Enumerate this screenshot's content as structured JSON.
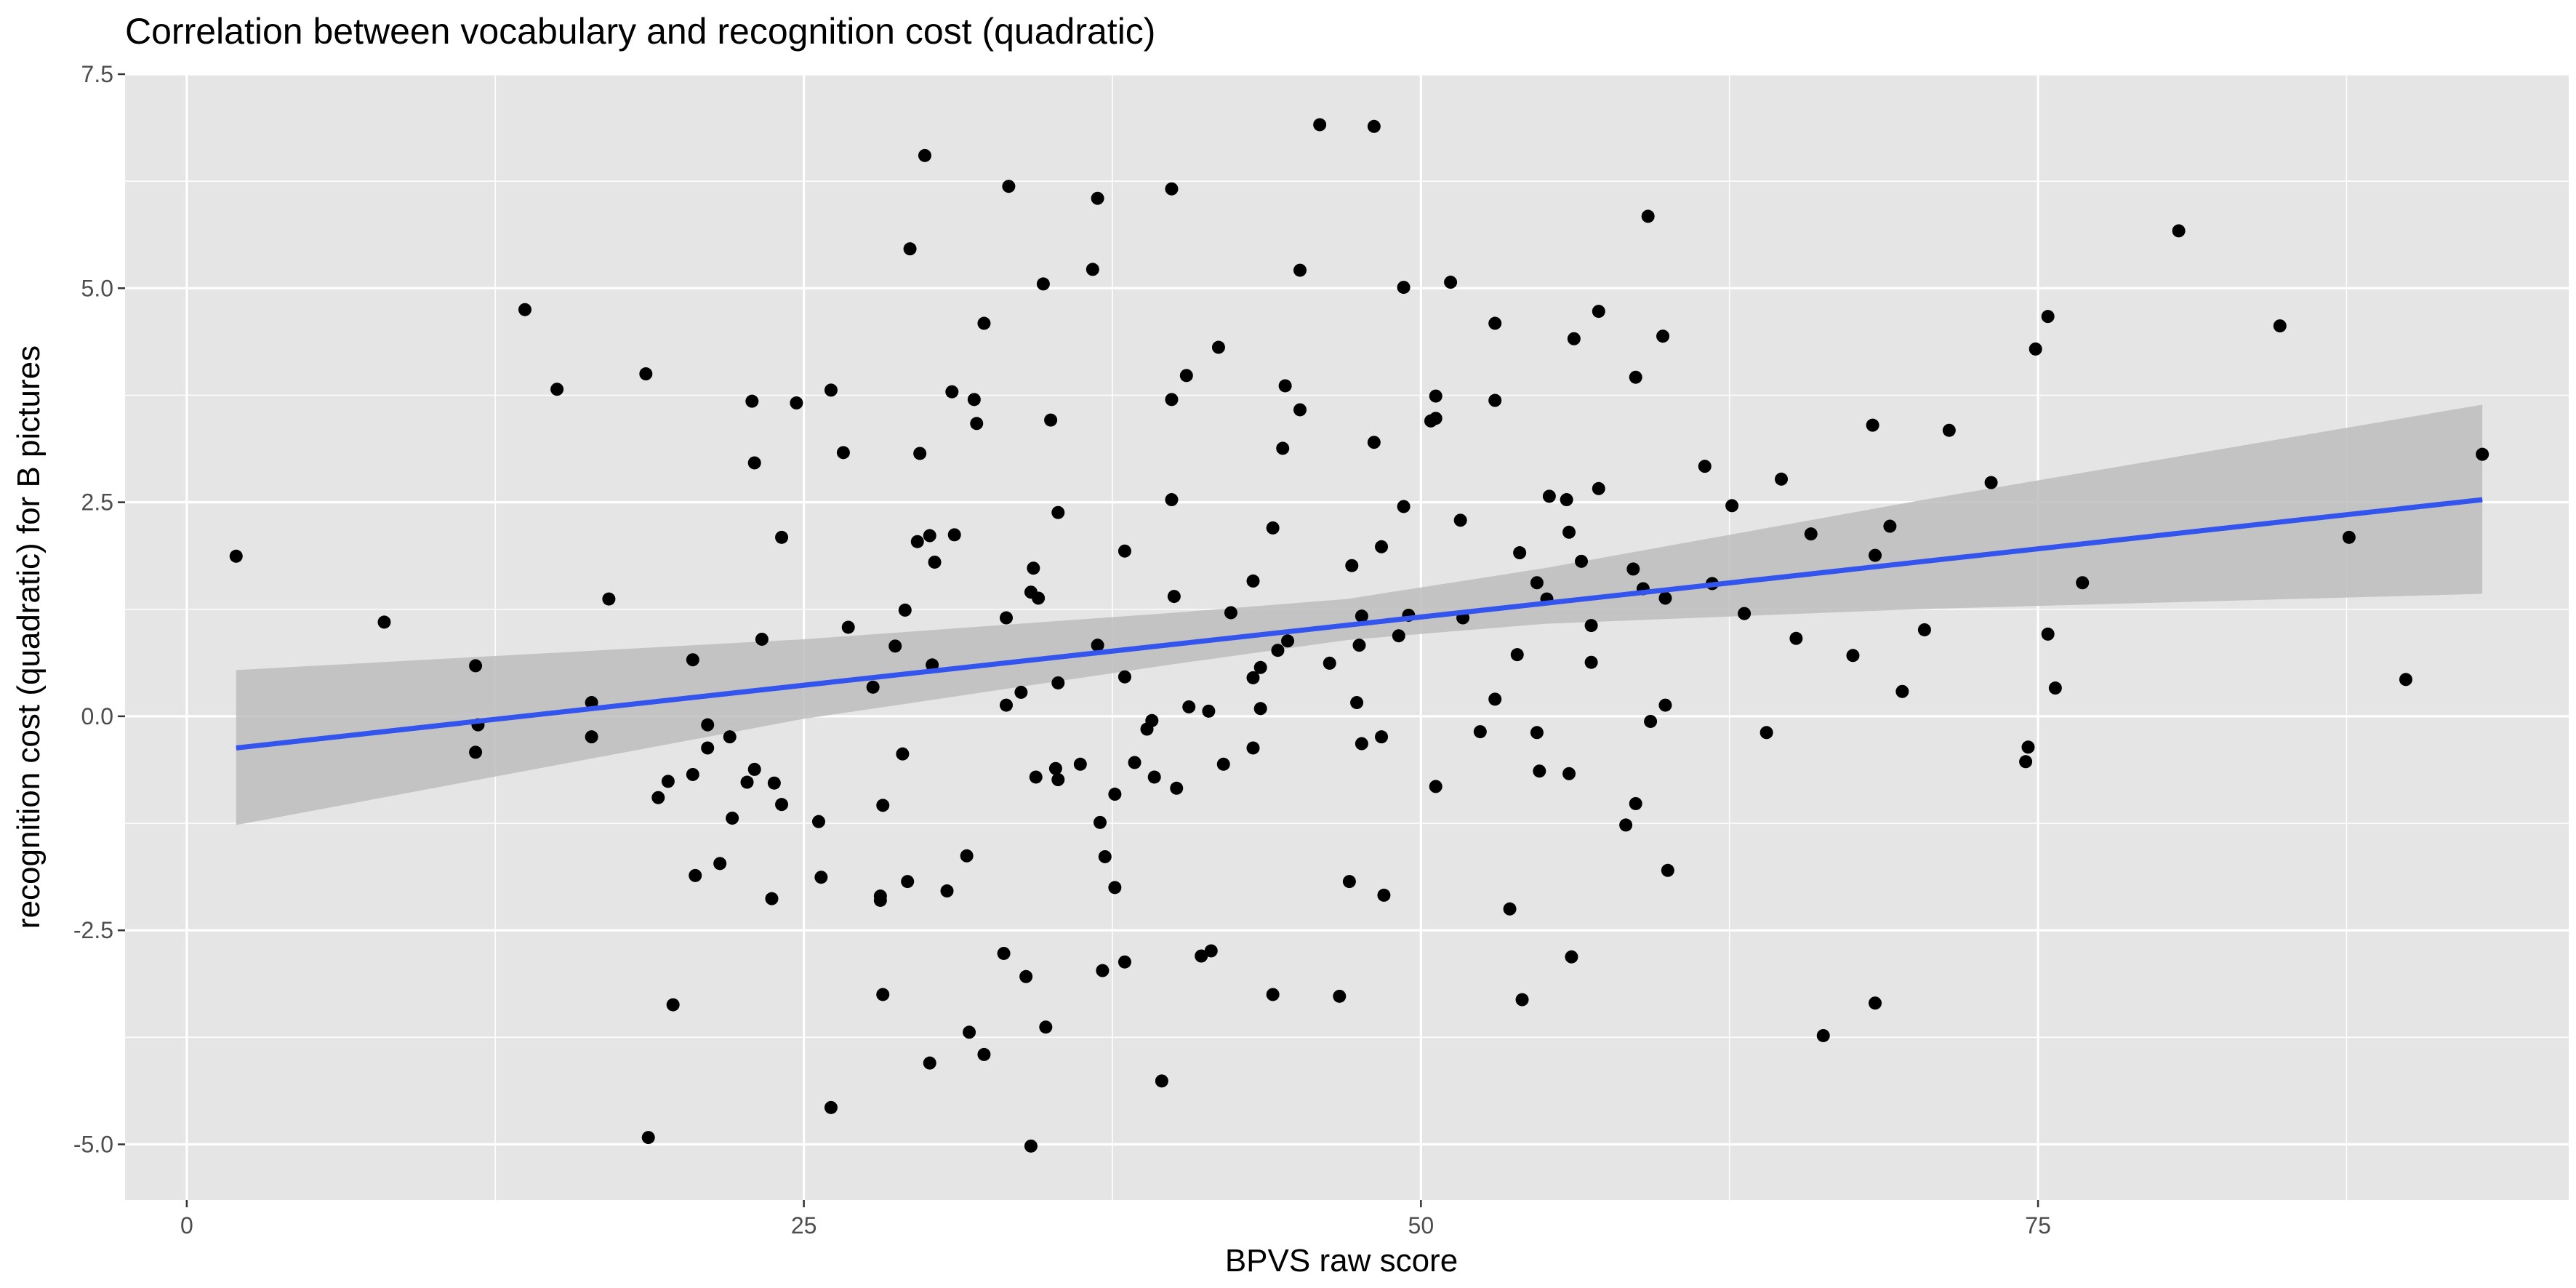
{
  "chart_data": {
    "type": "scatter",
    "title": "Correlation between vocabulary and recognition cost (quadratic)",
    "xlabel": "BPVS raw score",
    "ylabel": "recognition cost (quadratic) for B pictures",
    "xlim": [
      -2.5,
      96.5
    ],
    "ylim": [
      -5.65,
      7.5
    ],
    "x_ticks": [
      0,
      25,
      50,
      75
    ],
    "x_tick_labels": [
      "0",
      "25",
      "50",
      "75"
    ],
    "y_ticks": [
      -5,
      -2.5,
      0,
      2.5,
      5,
      7.5
    ],
    "y_tick_labels": [
      "-5.0",
      "-2.5",
      "0.0",
      "2.5",
      "5.0",
      "7.5"
    ],
    "grid": true,
    "panel_background": "#e5e5e5",
    "grid_color": "#ffffff",
    "point_color": "#000000",
    "fit": {
      "method": "linear regression",
      "x_range": [
        2,
        93
      ],
      "line": [
        [
          2,
          -0.37
        ],
        [
          93,
          2.53
        ]
      ],
      "color": "#3355ee",
      "ci_band_color": "#bdbdbd",
      "ci": [
        [
          2,
          -1.27,
          0.54
        ],
        [
          25,
          -0.03,
          0.9
        ],
        [
          40,
          0.61,
          1.21
        ],
        [
          47,
          0.89,
          1.37
        ],
        [
          55,
          1.08,
          1.73
        ],
        [
          70,
          1.25,
          2.51
        ],
        [
          93,
          1.43,
          3.64
        ]
      ]
    },
    "points": [
      [
        2,
        1.87
      ],
      [
        8,
        1.1
      ],
      [
        11.7,
        0.59
      ],
      [
        11.7,
        -0.42
      ],
      [
        11.8,
        -0.1
      ],
      [
        13.7,
        4.75
      ],
      [
        15,
        3.82
      ],
      [
        16.4,
        0.16
      ],
      [
        16.4,
        -0.24
      ],
      [
        17.1,
        1.37
      ],
      [
        18.6,
        4.0
      ],
      [
        18.7,
        -4.92
      ],
      [
        19.1,
        -0.95
      ],
      [
        19.5,
        -0.76
      ],
      [
        19.7,
        -3.37
      ],
      [
        20.5,
        0.66
      ],
      [
        20.5,
        -0.68
      ],
      [
        20.6,
        -1.86
      ],
      [
        21.1,
        -0.1
      ],
      [
        21.1,
        -0.37
      ],
      [
        21.6,
        -1.72
      ],
      [
        22,
        -0.24
      ],
      [
        22.1,
        -1.19
      ],
      [
        22.9,
        3.68
      ],
      [
        23,
        2.96
      ],
      [
        23,
        -0.62
      ],
      [
        23.3,
        0.9
      ],
      [
        22.7,
        -0.77
      ],
      [
        23.8,
        -0.78
      ],
      [
        23.7,
        -2.13
      ],
      [
        24.1,
        2.09
      ],
      [
        24.1,
        -1.03
      ],
      [
        24.7,
        3.66
      ],
      [
        25.6,
        -1.23
      ],
      [
        25.7,
        -1.88
      ],
      [
        26.1,
        3.81
      ],
      [
        26.1,
        -4.57
      ],
      [
        26.6,
        3.08
      ],
      [
        26.8,
        1.04
      ],
      [
        27.8,
        0.34
      ],
      [
        28.1,
        -2.15
      ],
      [
        28.1,
        -2.1
      ],
      [
        28.2,
        -3.25
      ],
      [
        28.2,
        -1.04
      ],
      [
        28.7,
        0.82
      ],
      [
        29,
        -0.44
      ],
      [
        29.1,
        1.24
      ],
      [
        29.2,
        -1.93
      ],
      [
        29.3,
        5.46
      ],
      [
        29.6,
        2.04
      ],
      [
        29.7,
        3.07
      ],
      [
        29.9,
        6.55
      ],
      [
        30.1,
        -4.05
      ],
      [
        30.1,
        2.11
      ],
      [
        30.2,
        0.6
      ],
      [
        30.3,
        1.8
      ],
      [
        30.8,
        -2.04
      ],
      [
        31.1,
        2.12
      ],
      [
        31,
        3.79
      ],
      [
        31.6,
        -1.63
      ],
      [
        31.7,
        -3.69
      ],
      [
        31.9,
        3.7
      ],
      [
        32,
        3.42
      ],
      [
        32.3,
        4.59
      ],
      [
        32.3,
        -3.95
      ],
      [
        33.1,
        -2.77
      ],
      [
        33.3,
        6.19
      ],
      [
        33.2,
        1.15
      ],
      [
        33.2,
        0.13
      ],
      [
        33.8,
        0.28
      ],
      [
        34,
        -3.04
      ],
      [
        34.2,
        -5.02
      ],
      [
        34.3,
        1.73
      ],
      [
        34.2,
        1.45
      ],
      [
        34.5,
        1.38
      ],
      [
        34.4,
        -0.71
      ],
      [
        34.7,
        5.05
      ],
      [
        34.8,
        -3.63
      ],
      [
        35,
        3.46
      ],
      [
        35.2,
        -0.61
      ],
      [
        35.3,
        -0.74
      ],
      [
        35.3,
        0.39
      ],
      [
        35.3,
        2.38
      ],
      [
        36.2,
        -0.56
      ],
      [
        36.7,
        5.22
      ],
      [
        36.9,
        6.05
      ],
      [
        36.9,
        0.83
      ],
      [
        37,
        -1.24
      ],
      [
        37.2,
        -1.64
      ],
      [
        37.1,
        -2.97
      ],
      [
        37.6,
        -2.0
      ],
      [
        37.6,
        -0.91
      ],
      [
        38,
        0.46
      ],
      [
        38,
        1.93
      ],
      [
        38,
        -2.87
      ],
      [
        38.4,
        -0.54
      ],
      [
        38.9,
        -0.15
      ],
      [
        39.1,
        -0.05
      ],
      [
        39.2,
        -0.71
      ],
      [
        39.5,
        -4.26
      ],
      [
        39.9,
        3.7
      ],
      [
        39.9,
        2.53
      ],
      [
        40,
        1.4
      ],
      [
        39.9,
        6.16
      ],
      [
        40.1,
        -0.84
      ],
      [
        40.5,
        3.98
      ],
      [
        40.6,
        0.11
      ],
      [
        41.1,
        -2.8
      ],
      [
        41.4,
        0.06
      ],
      [
        41.5,
        -2.74
      ],
      [
        41.8,
        4.31
      ],
      [
        42,
        -0.56
      ],
      [
        42.3,
        1.21
      ],
      [
        43.2,
        1.58
      ],
      [
        43.2,
        0.45
      ],
      [
        43.2,
        -0.37
      ],
      [
        43.5,
        0.09
      ],
      [
        43.5,
        0.57
      ],
      [
        44,
        2.2
      ],
      [
        44.2,
        0.77
      ],
      [
        44,
        -3.25
      ],
      [
        44.4,
        3.13
      ],
      [
        44.5,
        3.86
      ],
      [
        44.6,
        0.88
      ],
      [
        45.1,
        5.21
      ],
      [
        45.1,
        3.58
      ],
      [
        45.9,
        6.91
      ],
      [
        46.3,
        0.62
      ],
      [
        46.7,
        -3.27
      ],
      [
        47.1,
        -1.93
      ],
      [
        47.2,
        1.76
      ],
      [
        47.4,
        0.16
      ],
      [
        47.5,
        0.83
      ],
      [
        47.6,
        1.17
      ],
      [
        47.6,
        -0.32
      ],
      [
        48.1,
        6.89
      ],
      [
        48.1,
        3.2
      ],
      [
        48.4,
        1.98
      ],
      [
        48.4,
        -0.24
      ],
      [
        48.5,
        -2.09
      ],
      [
        49.1,
        0.94
      ],
      [
        49.3,
        5.01
      ],
      [
        49.3,
        2.45
      ],
      [
        49.5,
        1.18
      ],
      [
        50.4,
        3.45
      ],
      [
        50.6,
        3.48
      ],
      [
        50.6,
        3.74
      ],
      [
        50.6,
        -0.82
      ],
      [
        51.2,
        5.07
      ],
      [
        51.6,
        2.29
      ],
      [
        51.7,
        1.15
      ],
      [
        52.4,
        -0.18
      ],
      [
        53,
        4.59
      ],
      [
        53,
        3.69
      ],
      [
        53,
        0.2
      ],
      [
        53.6,
        -2.25
      ],
      [
        53.9,
        0.72
      ],
      [
        54,
        1.91
      ],
      [
        54.1,
        -3.31
      ],
      [
        54.7,
        1.56
      ],
      [
        54.7,
        -0.19
      ],
      [
        54.8,
        -0.64
      ],
      [
        55.1,
        1.37
      ],
      [
        55.2,
        2.57
      ],
      [
        55.9,
        2.53
      ],
      [
        56,
        2.15
      ],
      [
        56,
        -0.67
      ],
      [
        56.1,
        -2.81
      ],
      [
        56.2,
        4.41
      ],
      [
        56.5,
        1.81
      ],
      [
        56.9,
        1.06
      ],
      [
        56.9,
        0.63
      ],
      [
        57.2,
        4.73
      ],
      [
        57.2,
        2.66
      ],
      [
        58.3,
        -1.27
      ],
      [
        58.6,
        1.72
      ],
      [
        58.7,
        3.96
      ],
      [
        58.7,
        -1.02
      ],
      [
        59,
        1.49
      ],
      [
        59.2,
        5.84
      ],
      [
        59.3,
        -0.06
      ],
      [
        59.8,
        4.44
      ],
      [
        59.9,
        1.38
      ],
      [
        59.9,
        0.13
      ],
      [
        60,
        -1.8
      ],
      [
        61.5,
        2.92
      ],
      [
        61.8,
        1.55
      ],
      [
        62.6,
        2.46
      ],
      [
        63.1,
        1.2
      ],
      [
        64,
        -0.19
      ],
      [
        64.6,
        2.77
      ],
      [
        65.2,
        0.91
      ],
      [
        65.8,
        2.13
      ],
      [
        66.3,
        -3.73
      ],
      [
        67.5,
        0.71
      ],
      [
        68.3,
        3.4
      ],
      [
        68.4,
        1.88
      ],
      [
        68.4,
        -3.35
      ],
      [
        69,
        2.22
      ],
      [
        69.5,
        0.29
      ],
      [
        70.4,
        1.01
      ],
      [
        71.4,
        3.34
      ],
      [
        73.1,
        2.73
      ],
      [
        74.5,
        -0.53
      ],
      [
        74.6,
        -0.36
      ],
      [
        74.9,
        4.29
      ],
      [
        75.4,
        4.67
      ],
      [
        75.4,
        0.96
      ],
      [
        75.7,
        0.33
      ],
      [
        76.8,
        1.56
      ],
      [
        80.7,
        5.67
      ],
      [
        84.8,
        4.56
      ],
      [
        87.6,
        2.09
      ],
      [
        89.9,
        0.43
      ],
      [
        93,
        3.06
      ]
    ]
  }
}
